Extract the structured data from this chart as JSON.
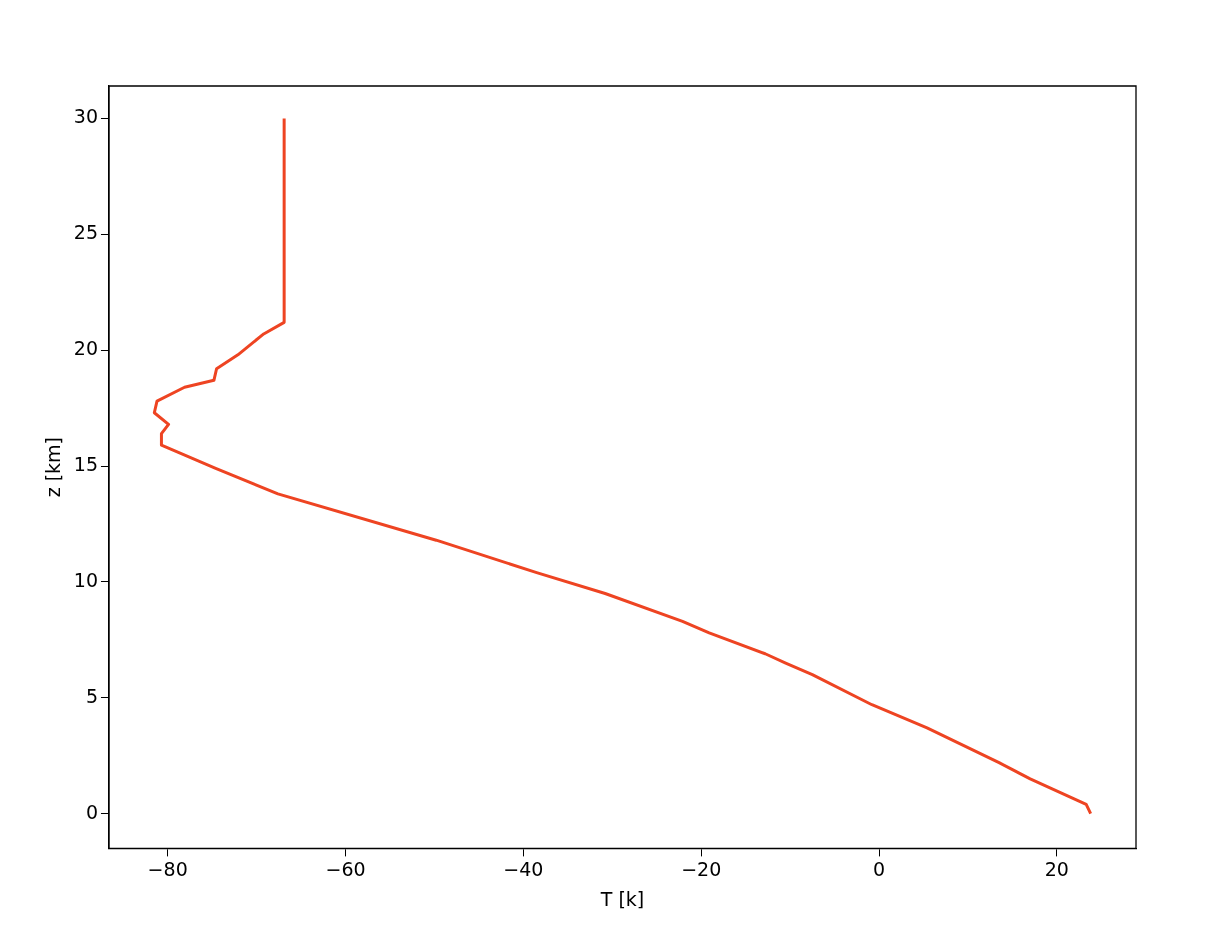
{
  "chart_data": {
    "type": "line",
    "xlabel": "T [k]",
    "ylabel": "z [km]",
    "x": [
      23.8,
      23.3,
      17.0,
      13.5,
      5.4,
      -0.8,
      -7.5,
      -10.5,
      -12.8,
      -19.1,
      -22.1,
      -30.8,
      -38.5,
      -49.8,
      -67.6,
      -74.6,
      -80.7,
      -80.7,
      -79.9,
      -81.5,
      -81.2,
      -78.1,
      -74.8,
      -74.5,
      -72.1,
      -69.2,
      -66.9,
      -66.9
    ],
    "series": [
      {
        "color": "#ee4422",
        "values": [
          0,
          0.4,
          1.5,
          2.2,
          3.7,
          4.7,
          6.0,
          6.5,
          6.9,
          7.8,
          8.3,
          9.5,
          10.4,
          11.8,
          13.8,
          14.9,
          15.9,
          16.4,
          16.8,
          17.3,
          17.8,
          18.4,
          18.7,
          19.2,
          19.8,
          20.7,
          21.2,
          30
        ]
      }
    ],
    "xlim": [
      -86.6,
      28.9
    ],
    "ylim": [
      -1.5,
      31.4
    ],
    "xticks": [
      -80,
      -60,
      -40,
      -20,
      0,
      20
    ],
    "yticks": [
      0,
      5,
      10,
      15,
      20,
      25,
      30
    ],
    "grid": false,
    "legend": false,
    "marker": "none",
    "line_style": "solid"
  }
}
